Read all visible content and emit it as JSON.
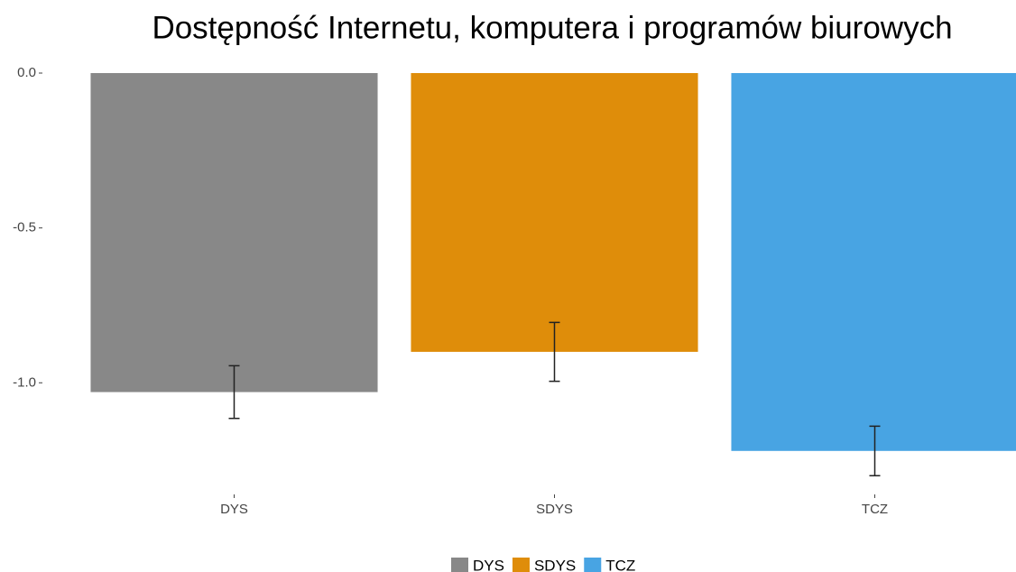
{
  "chart_data": {
    "type": "bar",
    "title": "Dostępność Internetu, komputera i programów biurowych",
    "categories": [
      "DYS",
      "SDYS",
      "TCZ"
    ],
    "series": [
      {
        "name": "value",
        "values": [
          -1.03,
          -0.9,
          -1.22
        ],
        "errors": [
          0.085,
          0.095,
          0.08
        ]
      }
    ],
    "colors": [
      "#888888",
      "#df8d0a",
      "#48a4e3"
    ],
    "ylim": [
      -1.34,
      0.0
    ],
    "yticks": [
      {
        "value": 0,
        "label": "0.0"
      },
      {
        "value": -0.5,
        "label": "-0.5"
      },
      {
        "value": -1,
        "label": "-1.0"
      }
    ],
    "legend": [
      "DYS",
      "SDYS",
      "TCZ"
    ],
    "grid": false
  }
}
